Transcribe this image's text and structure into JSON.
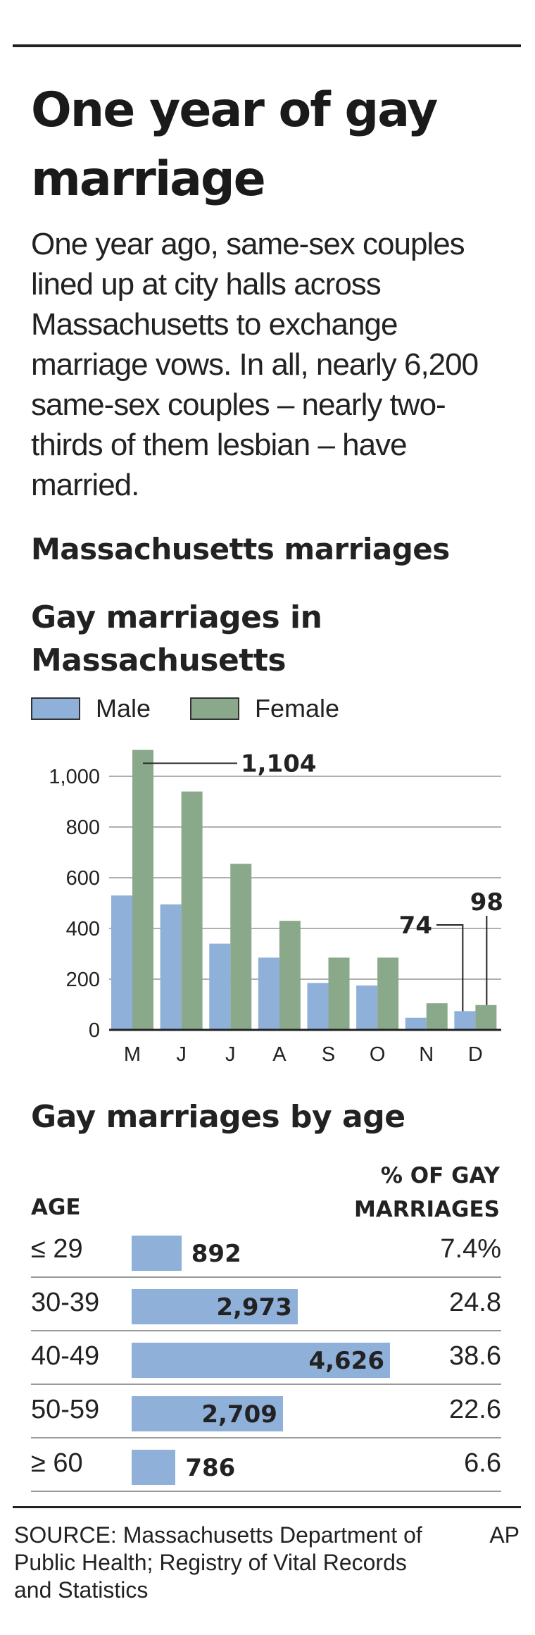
{
  "headline": "One year of gay marriage",
  "intro": "One year ago, same-sex couples lined up at city halls across Massachusetts to exchange marriage vows. In all, nearly 6,200 same-sex couples – nearly two-thirds of them lesbian – have married.",
  "section_title": "Massachusetts marriages",
  "colors": {
    "male": "#8fb0d8",
    "female": "#8aa88a",
    "grid": "#b0b0b0",
    "axis": "#222222"
  },
  "chart_data": [
    {
      "type": "bar",
      "title": "Gay marriages in Massachusetts",
      "categories": [
        "M",
        "J",
        "J",
        "A",
        "S",
        "O",
        "N",
        "D"
      ],
      "series": [
        {
          "name": "Male",
          "values": [
            530,
            495,
            340,
            285,
            185,
            175,
            48,
            74
          ]
        },
        {
          "name": "Female",
          "values": [
            1104,
            940,
            655,
            430,
            285,
            285,
            105,
            98
          ]
        }
      ],
      "yticks": [
        0,
        200,
        400,
        600,
        800,
        "1,000"
      ],
      "ylim": [
        0,
        1150
      ],
      "grid": true,
      "legend": "top",
      "annotations": [
        {
          "label": "1,104",
          "series": "Female",
          "category_index": 0
        },
        {
          "label": "74",
          "series": "Male",
          "category_index": 7
        },
        {
          "label": "98",
          "series": "Female",
          "category_index": 7
        }
      ]
    },
    {
      "type": "bar",
      "orientation": "horizontal",
      "title": "Gay marriages by age",
      "column_headers": {
        "age": "AGE",
        "percent": "% OF GAY MARRIAGES"
      },
      "rows": [
        {
          "age": "≤ 29",
          "value": 892,
          "label": "892",
          "percent": "7.4%"
        },
        {
          "age": "30-39",
          "value": 2973,
          "label": "2,973",
          "percent": "24.8"
        },
        {
          "age": "40-49",
          "value": 4626,
          "label": "4,626",
          "percent": "38.6"
        },
        {
          "age": "50-59",
          "value": 2709,
          "label": "2,709",
          "percent": "22.6"
        },
        {
          "age": "≥ 60",
          "value": 786,
          "label": "786",
          "percent": "6.6"
        }
      ],
      "xlim": [
        0,
        4626
      ]
    }
  ],
  "source": "SOURCE: Massachusetts Department of Public Health; Registry of Vital Records and Statistics",
  "credit": "AP"
}
